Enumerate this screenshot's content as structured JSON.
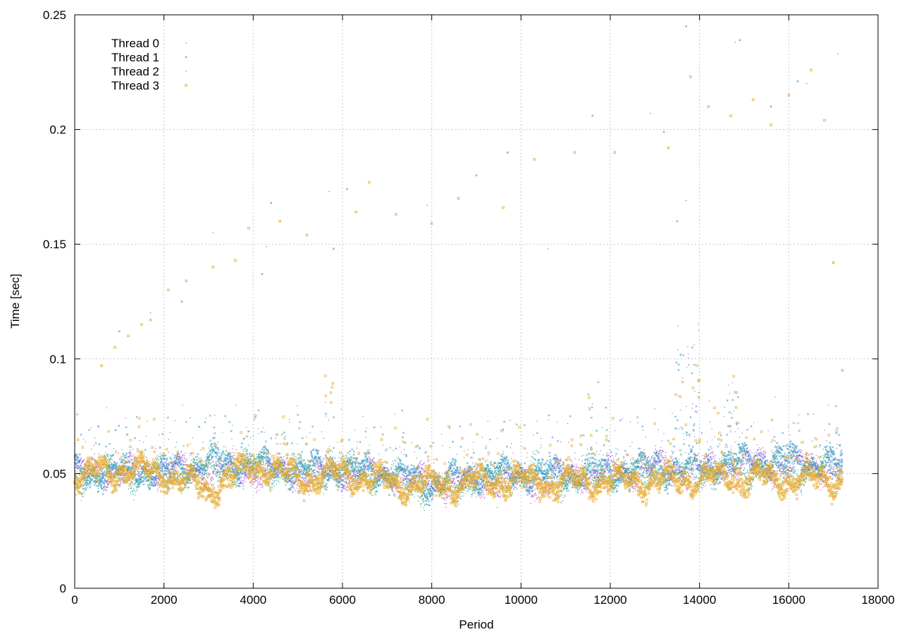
{
  "chart_data": {
    "type": "scatter",
    "title": "",
    "xlabel": "Period",
    "ylabel": "Time [sec]",
    "xlim": [
      0,
      18000
    ],
    "ylim": [
      0,
      0.25
    ],
    "xticks": [
      0,
      2000,
      4000,
      6000,
      8000,
      10000,
      12000,
      14000,
      16000,
      18000
    ],
    "yticks": [
      0,
      0.05,
      0.1,
      0.15,
      0.2,
      0.25
    ],
    "xtick_labels": [
      "0",
      "2000",
      "4000",
      "6000",
      "8000",
      "10000",
      "12000",
      "14000",
      "16000",
      "18000"
    ],
    "ytick_labels": [
      "0",
      "0.05",
      "0.1",
      "0.15",
      "0.2",
      "0.25"
    ],
    "grid": true,
    "legend_position": "top-left",
    "period_range": [
      0,
      17200
    ],
    "series": [
      {
        "name": "Thread 0",
        "color": "#9e3fcf",
        "marker": "dot",
        "baseline": [
          [
            0,
            0.05
          ],
          [
            1000,
            0.051
          ],
          [
            2000,
            0.052
          ],
          [
            3000,
            0.051
          ],
          [
            4000,
            0.05
          ],
          [
            5000,
            0.049
          ],
          [
            6000,
            0.05
          ],
          [
            7000,
            0.049
          ],
          [
            8000,
            0.046
          ],
          [
            9000,
            0.046
          ],
          [
            10000,
            0.046
          ],
          [
            11000,
            0.049
          ],
          [
            12000,
            0.05
          ],
          [
            13000,
            0.053
          ],
          [
            14000,
            0.052
          ],
          [
            15000,
            0.054
          ],
          [
            16000,
            0.053
          ],
          [
            17200,
            0.052
          ]
        ]
      },
      {
        "name": "Thread 1",
        "color": "#3a9bc8",
        "marker": "x",
        "baseline": [
          [
            0,
            0.05
          ],
          [
            1000,
            0.051
          ],
          [
            2000,
            0.05
          ],
          [
            3000,
            0.055
          ],
          [
            4000,
            0.054
          ],
          [
            5000,
            0.052
          ],
          [
            6000,
            0.052
          ],
          [
            7000,
            0.05
          ],
          [
            8000,
            0.046
          ],
          [
            9000,
            0.049
          ],
          [
            10000,
            0.05
          ],
          [
            11000,
            0.05
          ],
          [
            12000,
            0.05
          ],
          [
            13000,
            0.053
          ],
          [
            14000,
            0.052
          ],
          [
            15000,
            0.056
          ],
          [
            16000,
            0.056
          ],
          [
            17200,
            0.054
          ]
        ]
      },
      {
        "name": "Thread 2",
        "color": "#1f9e89",
        "marker": "dot",
        "baseline": [
          [
            0,
            0.048
          ],
          [
            1000,
            0.05
          ],
          [
            2000,
            0.049
          ],
          [
            3000,
            0.052
          ],
          [
            4000,
            0.053
          ],
          [
            5000,
            0.05
          ],
          [
            6000,
            0.051
          ],
          [
            7000,
            0.048
          ],
          [
            8000,
            0.043
          ],
          [
            9000,
            0.047
          ],
          [
            10000,
            0.051
          ],
          [
            11000,
            0.048
          ],
          [
            12000,
            0.049
          ],
          [
            13000,
            0.05
          ],
          [
            14000,
            0.05
          ],
          [
            15000,
            0.052
          ],
          [
            16000,
            0.051
          ],
          [
            17200,
            0.05
          ]
        ]
      },
      {
        "name": "Thread 3",
        "color": "#e4a82a",
        "marker": "square",
        "baseline": [
          [
            0,
            0.049
          ],
          [
            1000,
            0.052
          ],
          [
            2000,
            0.05
          ],
          [
            3000,
            0.043
          ],
          [
            4000,
            0.054
          ],
          [
            5000,
            0.048
          ],
          [
            6000,
            0.05
          ],
          [
            7000,
            0.046
          ],
          [
            8000,
            0.045
          ],
          [
            9000,
            0.046
          ],
          [
            10000,
            0.047
          ],
          [
            11000,
            0.046
          ],
          [
            12000,
            0.047
          ],
          [
            13000,
            0.047
          ],
          [
            14000,
            0.048
          ],
          [
            15000,
            0.048
          ],
          [
            16000,
            0.047
          ],
          [
            17200,
            0.048
          ]
        ]
      }
    ],
    "outliers": [
      {
        "series": 3,
        "points": [
          [
            600,
            0.097
          ],
          [
            900,
            0.105
          ],
          [
            1200,
            0.11
          ],
          [
            1500,
            0.115
          ],
          [
            1700,
            0.117
          ],
          [
            2100,
            0.13
          ],
          [
            2500,
            0.134
          ],
          [
            3100,
            0.14
          ],
          [
            3600,
            0.143
          ],
          [
            3900,
            0.157
          ],
          [
            4600,
            0.16
          ],
          [
            5200,
            0.154
          ],
          [
            6300,
            0.164
          ],
          [
            6600,
            0.177
          ],
          [
            7200,
            0.163
          ],
          [
            8000,
            0.159
          ],
          [
            8600,
            0.17
          ],
          [
            9600,
            0.166
          ],
          [
            10300,
            0.187
          ],
          [
            11200,
            0.19
          ],
          [
            12100,
            0.19
          ],
          [
            13300,
            0.192
          ],
          [
            13800,
            0.223
          ],
          [
            14200,
            0.21
          ],
          [
            14700,
            0.206
          ],
          [
            15200,
            0.213
          ],
          [
            15600,
            0.202
          ],
          [
            16000,
            0.215
          ],
          [
            16500,
            0.226
          ],
          [
            16800,
            0.204
          ],
          [
            17000,
            0.142
          ],
          [
            17200,
            0.095
          ]
        ]
      },
      {
        "series": 1,
        "points": [
          [
            1000,
            0.112
          ],
          [
            2400,
            0.125
          ],
          [
            4200,
            0.137
          ],
          [
            4400,
            0.168
          ],
          [
            5800,
            0.148
          ],
          [
            6100,
            0.174
          ],
          [
            9000,
            0.18
          ],
          [
            9700,
            0.19
          ],
          [
            11600,
            0.206
          ],
          [
            13200,
            0.199
          ],
          [
            13500,
            0.16
          ],
          [
            13700,
            0.245
          ],
          [
            14900,
            0.239
          ],
          [
            15600,
            0.21
          ],
          [
            16200,
            0.221
          ]
        ]
      },
      {
        "series": 0,
        "points": [
          [
            1700,
            0.12
          ],
          [
            3100,
            0.155
          ],
          [
            4300,
            0.149
          ],
          [
            5700,
            0.173
          ],
          [
            7900,
            0.167
          ],
          [
            10600,
            0.148
          ],
          [
            12900,
            0.207
          ],
          [
            13700,
            0.169
          ],
          [
            14800,
            0.238
          ],
          [
            16400,
            0.22
          ],
          [
            17100,
            0.233
          ]
        ]
      }
    ]
  }
}
